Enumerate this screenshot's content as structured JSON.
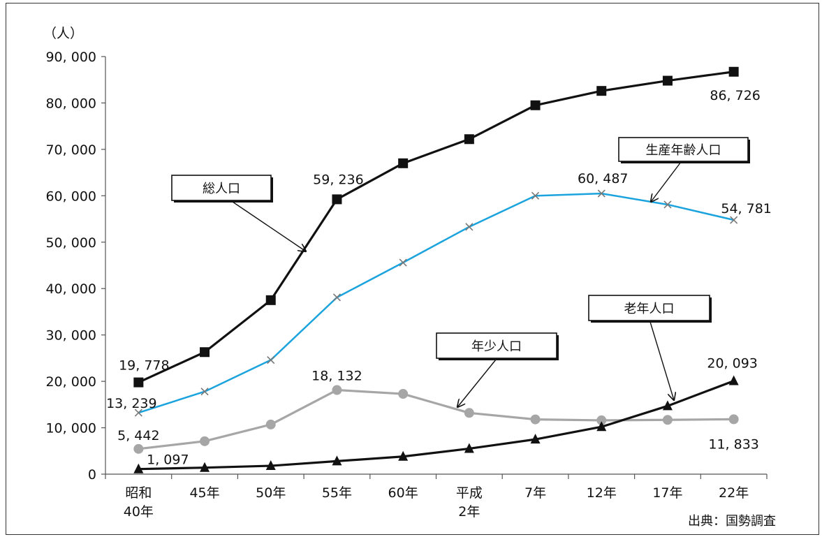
{
  "chart_data": {
    "type": "line",
    "unit_label": "（人）",
    "source": "出典：国勢調査",
    "ylim": [
      0,
      90000
    ],
    "yticks": [
      "90, 000",
      "80, 000",
      "70, 000",
      "60, 000",
      "50, 000",
      "40, 000",
      "30, 000",
      "20, 000",
      "10, 000",
      "0"
    ],
    "ytick_values": [
      90000,
      80000,
      70000,
      60000,
      50000,
      40000,
      30000,
      20000,
      10000,
      0
    ],
    "categories": [
      {
        "line1": "昭和",
        "line2": "40年"
      },
      {
        "line1": "45年",
        "line2": ""
      },
      {
        "line1": "50年",
        "line2": ""
      },
      {
        "line1": "55年",
        "line2": ""
      },
      {
        "line1": "60年",
        "line2": ""
      },
      {
        "line1": "平成",
        "line2": "2年"
      },
      {
        "line1": "7年",
        "line2": ""
      },
      {
        "line1": "12年",
        "line2": ""
      },
      {
        "line1": "17年",
        "line2": ""
      },
      {
        "line1": "22年",
        "line2": ""
      }
    ],
    "series": [
      {
        "name": "総人口",
        "color": "#111111",
        "marker": "square",
        "values": [
          19778,
          26300,
          37500,
          59236,
          67000,
          72200,
          79500,
          82600,
          84800,
          86726
        ],
        "labels": [
          {
            "index": 0,
            "text": "19, 778"
          },
          {
            "index": 3,
            "text": "59, 236"
          },
          {
            "index": 9,
            "text": "86, 726"
          }
        ]
      },
      {
        "name": "生産年齢人口",
        "color": "#1aa3dd",
        "marker": "x",
        "values": [
          13239,
          17800,
          24600,
          38100,
          45600,
          53300,
          60000,
          60487,
          58100,
          54781
        ],
        "labels": [
          {
            "index": 0,
            "text": "13, 239"
          },
          {
            "index": 7,
            "text": "60, 487"
          },
          {
            "index": 9,
            "text": "54, 781"
          }
        ]
      },
      {
        "name": "年少人口",
        "color": "#a6a6a6",
        "marker": "circle",
        "values": [
          5442,
          7100,
          10700,
          18132,
          17300,
          13200,
          11800,
          11600,
          11700,
          11833
        ],
        "labels": [
          {
            "index": 0,
            "text": "5, 442"
          },
          {
            "index": 3,
            "text": "18, 132"
          },
          {
            "index": 9,
            "text": "11, 833"
          }
        ]
      },
      {
        "name": "老年人口",
        "color": "#111111",
        "marker": "triangle",
        "values": [
          1097,
          1400,
          1800,
          2800,
          3800,
          5500,
          7500,
          10200,
          14700,
          20093
        ],
        "labels": [
          {
            "index": 0,
            "text": "1, 097"
          },
          {
            "index": 9,
            "text": "20, 093"
          }
        ]
      }
    ],
    "callouts": [
      {
        "series": "総人口",
        "text": "総人口"
      },
      {
        "series": "生産年齢人口",
        "text": "生産年齢人口"
      },
      {
        "series": "年少人口",
        "text": "年少人口"
      },
      {
        "series": "老年人口",
        "text": "老年人口"
      }
    ]
  }
}
